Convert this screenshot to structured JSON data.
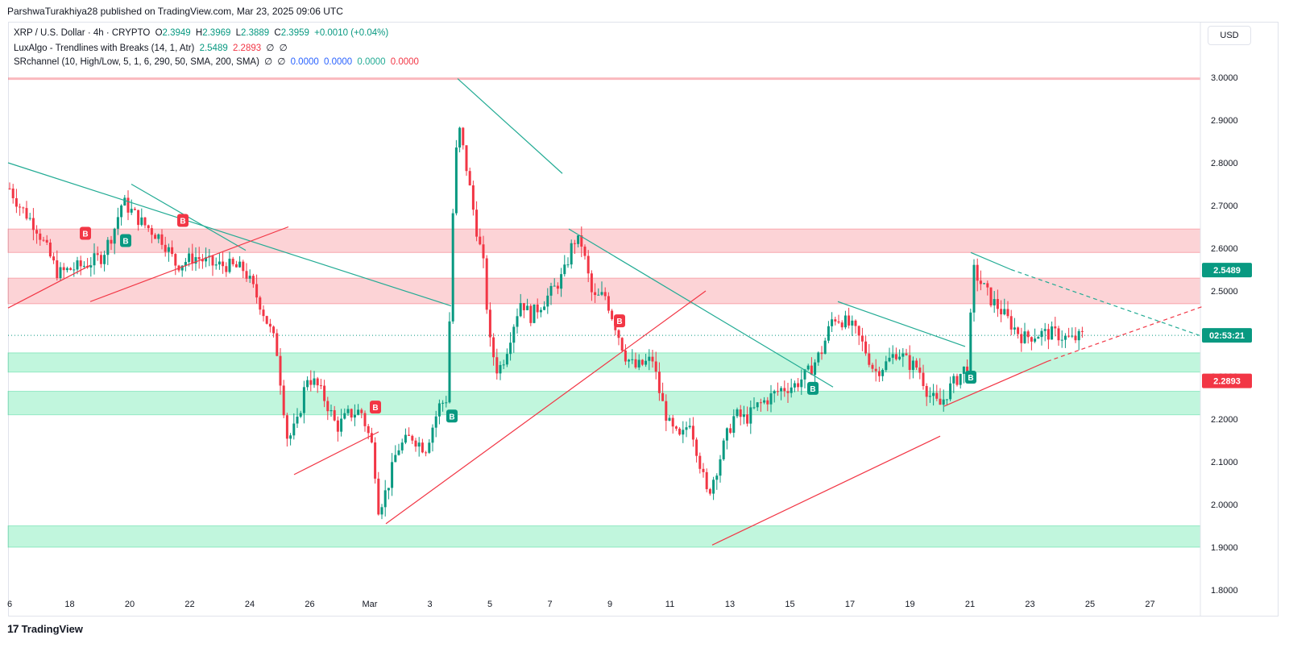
{
  "header": {
    "publisher": "ParshwaTurakhiya28 published on TradingView.com, Mar 23, 2025 09:06 UTC"
  },
  "legend": {
    "symbol": "XRP / U.S. Dollar · 4h · CRYPTO",
    "o_label": "O",
    "o_value": "2.3949",
    "h_label": "H",
    "h_value": "2.3969",
    "l_label": "L",
    "l_value": "2.3889",
    "c_label": "C",
    "c_value": "2.3959",
    "change": "+0.0010 (+0.04%)",
    "ind1_name": "LuxAlgo - Trendlines with Breaks (14, 1, Atr)",
    "ind1_v1": "2.5489",
    "ind1_v2": "2.2893",
    "ind1_v3": "∅",
    "ind1_v4": "∅",
    "ind2_name": "SRchannel (10, High/Low, 5, 1, 6, 290, 50, SMA, 200, SMA)",
    "ind2_v1": "∅",
    "ind2_v2": "∅",
    "ind2_v3": "0.0000",
    "ind2_v4": "0.0000",
    "ind2_v5": "0.0000",
    "ind2_v6": "0.0000"
  },
  "currency_button": "USD",
  "brand": {
    "logo": "17",
    "name": "TradingView"
  },
  "colors": {
    "up": "#089981",
    "down": "#f23645",
    "res_zone": "rgba(242,54,69,0.22)",
    "sup_zone": "rgba(8,220,120,0.25)",
    "teal_line": "#22ab94",
    "red_line": "#f23645",
    "grid": "#f0f3fa"
  },
  "chart_data": {
    "type": "candlestick",
    "symbol": "XRP / U.S. Dollar",
    "interval": "4h",
    "ylim": [
      1.75,
      3.05
    ],
    "y_ticks": [
      "3.0000",
      "2.9000",
      "2.8000",
      "2.7000",
      "2.6000",
      "2.5000",
      "2.4000",
      "2.3000",
      "2.2000",
      "2.1000",
      "2.0000",
      "1.9000",
      "1.8000"
    ],
    "x_ticks": [
      "6",
      "18",
      "20",
      "22",
      "24",
      "26",
      "Mar",
      "3",
      "5",
      "7",
      "9",
      "11",
      "13",
      "15",
      "17",
      "19",
      "21",
      "23",
      "25",
      "27"
    ],
    "price_labels": [
      {
        "text": "2.5489",
        "value": 2.5489,
        "color": "#089981"
      },
      {
        "text": "02:53:21",
        "value": 2.3959,
        "color": "#089981"
      },
      {
        "text": "2.2893",
        "value": 2.2893,
        "color": "#f23645"
      }
    ],
    "resistance_zones": [
      [
        2.59,
        2.645
      ],
      [
        2.47,
        2.53
      ]
    ],
    "support_zones": [
      [
        2.31,
        2.355
      ],
      [
        2.21,
        2.265
      ],
      [
        1.9,
        1.95
      ]
    ],
    "resistance_line": 2.997,
    "last_price": 2.3959,
    "path": [
      [
        0,
        2.78
      ],
      [
        24,
        2.7
      ],
      [
        45,
        2.65
      ],
      [
        72,
        2.54
      ],
      [
        86,
        2.55
      ],
      [
        104,
        2.56
      ],
      [
        126,
        2.58
      ],
      [
        141,
        2.64
      ],
      [
        152,
        2.71
      ],
      [
        176,
        2.66
      ],
      [
        202,
        2.62
      ],
      [
        219,
        2.56
      ],
      [
        242,
        2.58
      ],
      [
        266,
        2.56
      ],
      [
        281,
        2.56
      ],
      [
        303,
        2.55
      ],
      [
        323,
        2.47
      ],
      [
        343,
        2.37
      ],
      [
        357,
        2.15
      ],
      [
        369,
        2.19
      ],
      [
        381,
        2.3
      ],
      [
        393,
        2.28
      ],
      [
        405,
        2.24
      ],
      [
        418,
        2.18
      ],
      [
        432,
        2.21
      ],
      [
        448,
        2.22
      ],
      [
        463,
        2.13
      ],
      [
        470,
        1.99
      ],
      [
        481,
        2.04
      ],
      [
        493,
        2.13
      ],
      [
        511,
        2.16
      ],
      [
        528,
        2.13
      ],
      [
        545,
        2.23
      ],
      [
        555,
        2.25
      ],
      [
        564,
        2.79
      ],
      [
        570,
        2.88
      ],
      [
        578,
        2.8
      ],
      [
        590,
        2.66
      ],
      [
        600,
        2.56
      ],
      [
        608,
        2.38
      ],
      [
        618,
        2.31
      ],
      [
        627,
        2.35
      ],
      [
        637,
        2.42
      ],
      [
        647,
        2.48
      ],
      [
        658,
        2.44
      ],
      [
        672,
        2.47
      ],
      [
        686,
        2.5
      ],
      [
        700,
        2.54
      ],
      [
        712,
        2.62
      ],
      [
        722,
        2.61
      ],
      [
        736,
        2.48
      ],
      [
        751,
        2.49
      ],
      [
        762,
        2.43
      ],
      [
        776,
        2.35
      ],
      [
        788,
        2.32
      ],
      [
        800,
        2.33
      ],
      [
        810,
        2.34
      ],
      [
        820,
        2.25
      ],
      [
        832,
        2.18
      ],
      [
        845,
        2.15
      ],
      [
        856,
        2.2
      ],
      [
        866,
        2.12
      ],
      [
        878,
        2.02
      ],
      [
        889,
        2.08
      ],
      [
        902,
        2.16
      ],
      [
        912,
        2.21
      ],
      [
        926,
        2.2
      ],
      [
        940,
        2.23
      ],
      [
        955,
        2.25
      ],
      [
        969,
        2.27
      ],
      [
        987,
        2.28
      ],
      [
        1004,
        2.31
      ],
      [
        1020,
        2.36
      ],
      [
        1034,
        2.44
      ],
      [
        1047,
        2.43
      ],
      [
        1060,
        2.41
      ],
      [
        1072,
        2.37
      ],
      [
        1086,
        2.31
      ],
      [
        1100,
        2.33
      ],
      [
        1114,
        2.36
      ],
      [
        1128,
        2.33
      ],
      [
        1140,
        2.32
      ],
      [
        1152,
        2.26
      ],
      [
        1166,
        2.23
      ],
      [
        1178,
        2.27
      ],
      [
        1194,
        2.31
      ],
      [
        1202,
        2.33
      ],
      [
        1208,
        2.55
      ],
      [
        1217,
        2.52
      ],
      [
        1230,
        2.48
      ],
      [
        1240,
        2.46
      ],
      [
        1256,
        2.42
      ],
      [
        1270,
        2.39
      ],
      [
        1290,
        2.4
      ],
      [
        1310,
        2.4
      ],
      [
        1330,
        2.385
      ],
      [
        1345,
        2.3959
      ]
    ],
    "breaks": [
      {
        "label": "B",
        "x": 106,
        "v": 2.635,
        "color": "#f23645"
      },
      {
        "label": "B",
        "x": 156,
        "v": 2.618,
        "color": "#089981"
      },
      {
        "label": "B",
        "x": 227,
        "v": 2.665,
        "color": "#f23645"
      },
      {
        "label": "B",
        "x": 466,
        "v": 2.228,
        "color": "#f23645"
      },
      {
        "label": "B",
        "x": 561,
        "v": 2.207,
        "color": "#089981"
      },
      {
        "label": "B",
        "x": 769,
        "v": 2.43,
        "color": "#f23645"
      },
      {
        "label": "B",
        "x": 1009,
        "v": 2.272,
        "color": "#089981"
      },
      {
        "label": "B",
        "x": 1205,
        "v": 2.298,
        "color": "#089981"
      }
    ],
    "trendlines": [
      {
        "color": "#22ab94",
        "pts": [
          [
            10,
            2.8
          ],
          [
            560,
            2.465
          ]
        ]
      },
      {
        "color": "#22ab94",
        "pts": [
          [
            163,
            2.75
          ],
          [
            305,
            2.595
          ]
        ]
      },
      {
        "color": "#22ab94",
        "pts": [
          [
            568,
            2.997
          ],
          [
            698,
            2.775
          ]
        ]
      },
      {
        "color": "#22ab94",
        "pts": [
          [
            706,
            2.645
          ],
          [
            1034,
            2.275
          ]
        ]
      },
      {
        "color": "#22ab94",
        "pts": [
          [
            1040,
            2.475
          ],
          [
            1198,
            2.37
          ]
        ]
      },
      {
        "color": "#22ab94",
        "pts": [
          [
            1205,
            2.59
          ],
          [
            1255,
            2.55
          ]
        ]
      },
      {
        "color": "#22ab94",
        "pts": [
          [
            1255,
            2.55
          ],
          [
            1490,
            2.395
          ]
        ],
        "dashed": true
      },
      {
        "color": "#f23645",
        "pts": [
          [
            10,
            2.46
          ],
          [
            112,
            2.56
          ]
        ]
      },
      {
        "color": "#f23645",
        "pts": [
          [
            112,
            2.475
          ],
          [
            358,
            2.65
          ]
        ]
      },
      {
        "color": "#f23645",
        "pts": [
          [
            365,
            2.07
          ],
          [
            470,
            2.17
          ]
        ]
      },
      {
        "color": "#f23645",
        "pts": [
          [
            479,
            1.955
          ],
          [
            876,
            2.5
          ]
        ]
      },
      {
        "color": "#f23645",
        "pts": [
          [
            884,
            1.905
          ],
          [
            1167,
            2.16
          ]
        ]
      },
      {
        "color": "#f23645",
        "pts": [
          [
            1172,
            2.23
          ],
          [
            1300,
            2.335
          ]
        ]
      },
      {
        "color": "#f23645",
        "pts": [
          [
            1300,
            2.335
          ],
          [
            1495,
            2.465
          ]
        ],
        "dashed": true
      }
    ]
  }
}
